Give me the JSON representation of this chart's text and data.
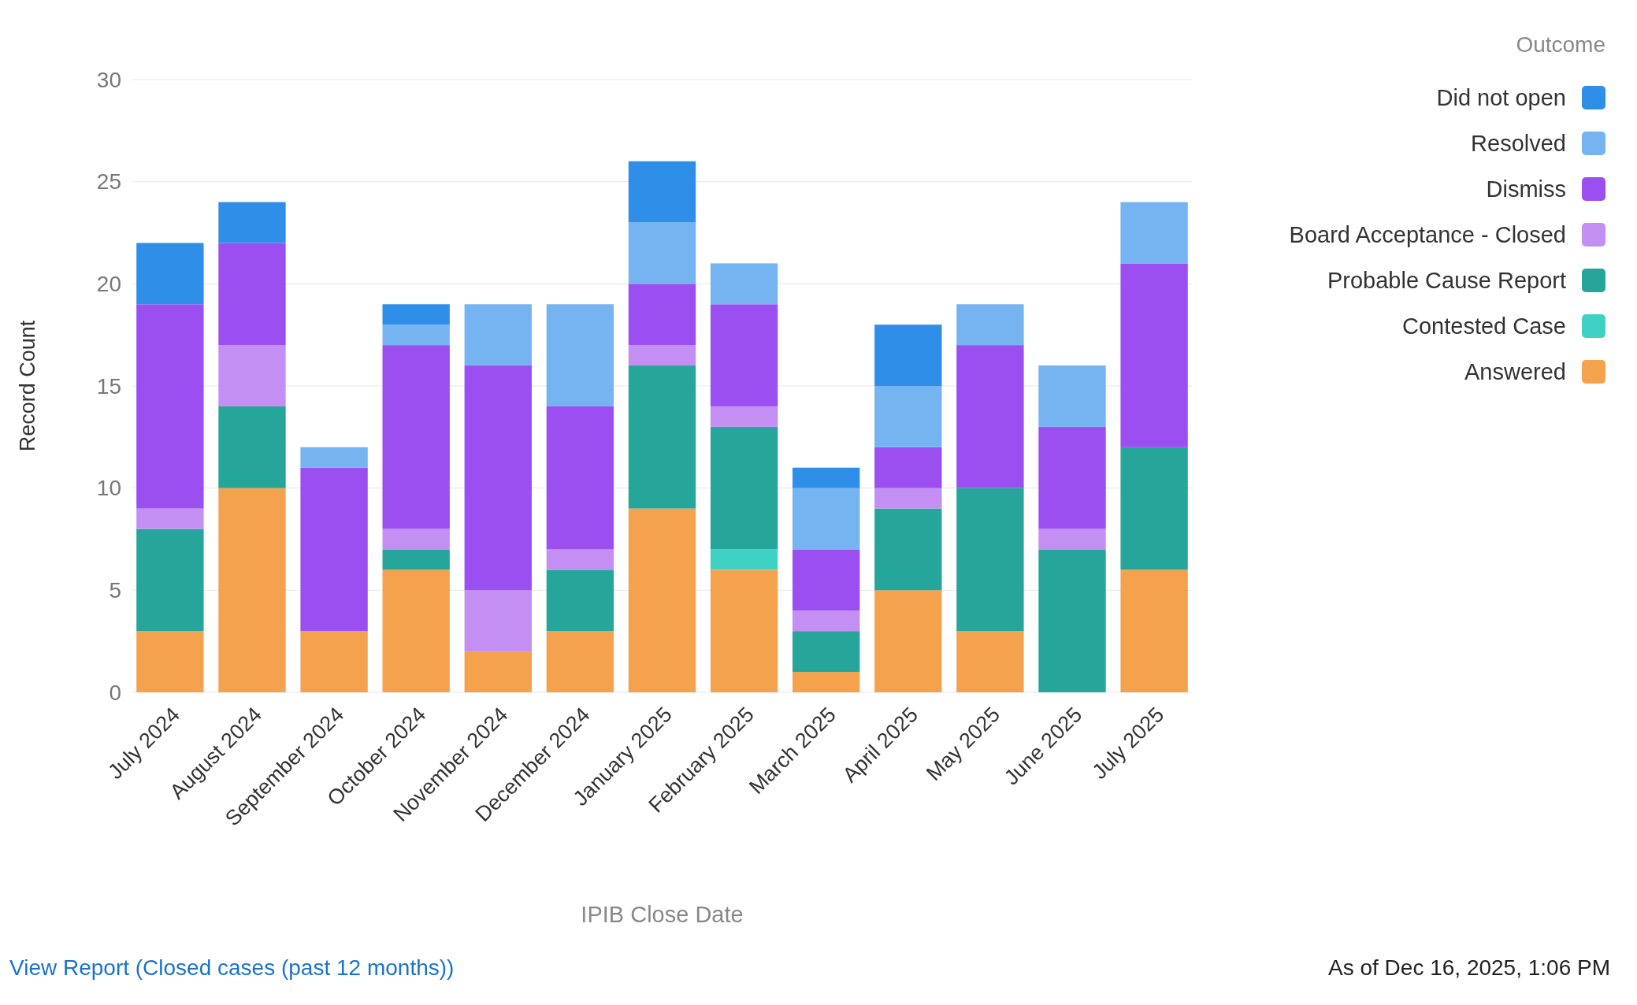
{
  "chart_data": {
    "type": "bar",
    "stacked": true,
    "xlabel": "IPIB Close Date",
    "ylabel": "Record Count",
    "legend_title": "Outcome",
    "legend": "top right",
    "grid": "y",
    "categories": [
      "July 2024",
      "August 2024",
      "September 2024",
      "October 2024",
      "November 2024",
      "December 2024",
      "January 2025",
      "February 2025",
      "March 2025",
      "April 2025",
      "May 2025",
      "June 2025",
      "July 2025"
    ],
    "ylim": [
      0,
      30
    ],
    "yticks": [
      0,
      5,
      10,
      15,
      20,
      25,
      30
    ],
    "series": [
      {
        "name": "Answered",
        "color": "#f4a24d",
        "values": [
          3,
          10,
          3,
          6,
          2,
          3,
          9,
          6,
          1,
          5,
          3,
          0,
          6
        ]
      },
      {
        "name": "Contested Case",
        "color": "#3fd1c4",
        "values": [
          0,
          0,
          0,
          0,
          0,
          0,
          0,
          1,
          0,
          0,
          0,
          0,
          0
        ]
      },
      {
        "name": "Probable Cause Report",
        "color": "#26a69a",
        "values": [
          5,
          4,
          0,
          1,
          0,
          3,
          7,
          6,
          2,
          4,
          7,
          7,
          6
        ]
      },
      {
        "name": "Board Acceptance - Closed",
        "color": "#c38ff2",
        "values": [
          1,
          3,
          0,
          1,
          3,
          1,
          1,
          1,
          1,
          1,
          0,
          1,
          0
        ]
      },
      {
        "name": "Dismiss",
        "color": "#9b4ff0",
        "values": [
          10,
          5,
          8,
          9,
          11,
          7,
          3,
          5,
          3,
          2,
          7,
          5,
          9
        ]
      },
      {
        "name": "Resolved",
        "color": "#75b4f0",
        "values": [
          0,
          0,
          1,
          1,
          3,
          5,
          3,
          2,
          3,
          3,
          2,
          3,
          3
        ]
      },
      {
        "name": "Did not open",
        "color": "#2f8fe8",
        "values": [
          3,
          2,
          0,
          1,
          0,
          0,
          3,
          0,
          1,
          3,
          0,
          0,
          0
        ]
      }
    ],
    "annotations": [
      "View Report (Closed cases (past 12 months))",
      "As of Dec 16, 2025, 1:06 PM"
    ]
  }
}
